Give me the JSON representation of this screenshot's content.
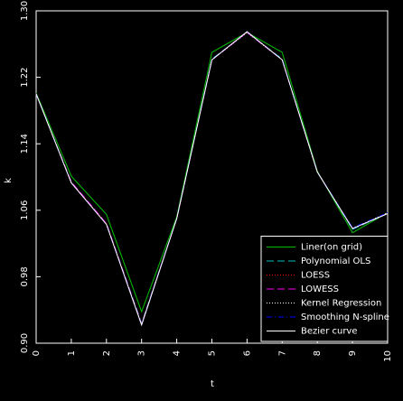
{
  "chart_data": {
    "type": "line",
    "xlabel": "t",
    "ylabel": "k",
    "x": [
      0,
      1,
      2,
      3,
      4,
      5,
      6,
      7,
      8,
      9,
      10
    ],
    "xlim": [
      0,
      10
    ],
    "xticks": [
      0,
      1,
      2,
      3,
      4,
      5,
      6,
      7,
      8,
      9,
      10
    ],
    "ylim": [
      0.9,
      1.3
    ],
    "yticks": [
      {
        "value": 0.9,
        "label": "0.90"
      },
      0.98,
      1.06,
      1.14,
      1.22,
      {
        "value": 1.3,
        "label": "1.30"
      }
    ],
    "legend": "lower right",
    "series": [
      {
        "name": "Liner(on grid)",
        "color": "#00c000",
        "style": "solid",
        "values": [
          1.201,
          1.101,
          1.055,
          0.938,
          1.052,
          1.25,
          1.274,
          1.25,
          1.107,
          1.033,
          1.057
        ]
      },
      {
        "name": "Polynomial OLS",
        "color": "#00c0c0",
        "style": "dashed",
        "values": [
          1.2,
          1.094,
          1.044,
          0.924,
          1.05,
          1.242,
          1.274,
          1.242,
          1.106,
          1.037,
          1.056
        ]
      },
      {
        "name": "LOESS",
        "color": "#ff0000",
        "style": "dotted",
        "values": [
          1.2,
          1.094,
          1.044,
          0.923,
          1.05,
          1.241,
          1.274,
          1.241,
          1.106,
          1.038,
          1.056
        ]
      },
      {
        "name": "LOWESS",
        "color": "#ff00ff",
        "style": "dashed",
        "values": [
          1.2,
          1.094,
          1.044,
          0.923,
          1.05,
          1.241,
          1.274,
          1.241,
          1.106,
          1.038,
          1.056
        ]
      },
      {
        "name": "Kernel Regression",
        "color": "#ffffff",
        "style": "dotted",
        "values": [
          1.2,
          1.093,
          1.043,
          0.922,
          1.05,
          1.241,
          1.274,
          1.241,
          1.106,
          1.038,
          1.057
        ]
      },
      {
        "name": "Smoothing N-spline",
        "color": "#0000ff",
        "style": "dashdot",
        "values": [
          1.2,
          1.093,
          1.043,
          0.922,
          1.05,
          1.241,
          1.275,
          1.241,
          1.106,
          1.039,
          1.057
        ]
      },
      {
        "name": "Bezier curve",
        "color": "#ffffff",
        "style": "solid",
        "values": [
          1.2,
          1.093,
          1.043,
          0.922,
          1.05,
          1.241,
          1.275,
          1.241,
          1.106,
          1.038,
          1.056
        ]
      }
    ]
  }
}
